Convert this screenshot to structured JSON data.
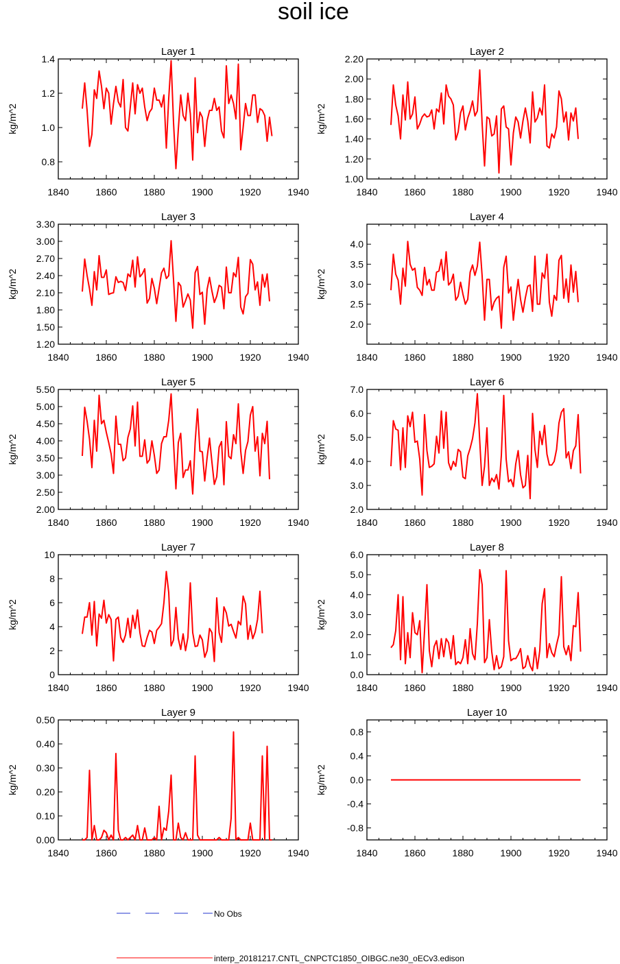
{
  "title": "soil ice",
  "legend": {
    "items": [
      {
        "label": "No Obs",
        "color": "#2233cc",
        "style": "dashed"
      },
      {
        "label": "interp_20181217.CNTL_CNPCTC1850_OIBGC.ne30_oECv3.edison",
        "color": "#ff0000",
        "style": "solid"
      }
    ]
  },
  "line_color": "#ff0000",
  "chart_data": [
    {
      "type": "line",
      "title": "Layer 1",
      "ylabel": "kg/m^2",
      "xlim": [
        1840,
        1940
      ],
      "ylim": [
        0.7,
        1.4
      ],
      "xticks": [
        1840,
        1860,
        1880,
        1900,
        1920,
        1940
      ],
      "xtick_labels": [
        "1840",
        "1860",
        "1880",
        "1900",
        "1920",
        "1940"
      ],
      "yticks": [
        0.8,
        1.0,
        1.2,
        1.4
      ],
      "ytick_labels": [
        "0.8",
        "1.0",
        "1.2",
        "1.4"
      ],
      "x_start": 1850,
      "values": [
        1.11,
        1.26,
        1.1,
        0.89,
        0.96,
        1.22,
        1.17,
        1.33,
        1.24,
        1.11,
        1.23,
        1.2,
        1.02,
        1.14,
        1.24,
        1.15,
        1.12,
        1.28,
        1.0,
        0.98,
        1.12,
        1.26,
        1.08,
        1.25,
        1.2,
        1.23,
        1.12,
        1.04,
        1.09,
        1.11,
        1.23,
        1.16,
        1.16,
        1.12,
        1.19,
        0.88,
        1.17,
        1.39,
        1.03,
        0.76,
        0.99,
        1.19,
        1.07,
        1.04,
        1.2,
        1.08,
        0.81,
        1.29,
        0.97,
        1.09,
        1.06,
        0.89,
        1.04,
        1.1,
        1.1,
        1.17,
        1.1,
        1.12,
        0.98,
        0.94,
        1.36,
        1.14,
        1.19,
        1.14,
        1.05,
        1.37,
        0.87,
        1.0,
        1.14,
        1.07,
        1.07,
        1.19,
        1.19,
        1.03,
        1.11,
        1.1,
        1.07,
        0.92,
        1.06,
        0.95
      ]
    },
    {
      "type": "line",
      "title": "Layer 2",
      "ylabel": "kg/m^2",
      "xlim": [
        1840,
        1940
      ],
      "ylim": [
        1.0,
        2.2
      ],
      "xticks": [
        1840,
        1860,
        1880,
        1900,
        1920,
        1940
      ],
      "xtick_labels": [
        "1840",
        "1860",
        "1880",
        "1900",
        "1920",
        "1940"
      ],
      "yticks": [
        1.0,
        1.2,
        1.4,
        1.6,
        1.8,
        2.0,
        2.2
      ],
      "ytick_labels": [
        "1.00",
        "1.20",
        "1.40",
        "1.60",
        "1.80",
        "2.00",
        "2.20"
      ],
      "x_start": 1850,
      "values": [
        1.54,
        1.94,
        1.74,
        1.63,
        1.4,
        1.84,
        1.59,
        1.97,
        1.6,
        1.65,
        1.82,
        1.5,
        1.55,
        1.62,
        1.65,
        1.62,
        1.63,
        1.69,
        1.5,
        1.7,
        1.67,
        1.86,
        1.55,
        1.94,
        1.83,
        1.8,
        1.74,
        1.39,
        1.47,
        1.66,
        1.73,
        1.49,
        1.61,
        1.68,
        1.78,
        1.63,
        1.68,
        2.09,
        1.55,
        1.13,
        1.62,
        1.6,
        1.43,
        1.45,
        1.63,
        1.06,
        1.7,
        1.73,
        1.52,
        1.5,
        1.14,
        1.46,
        1.62,
        1.57,
        1.41,
        1.58,
        1.71,
        1.58,
        1.36,
        1.87,
        1.57,
        1.61,
        1.71,
        1.64,
        1.94,
        1.33,
        1.31,
        1.45,
        1.41,
        1.52,
        1.88,
        1.8,
        1.57,
        1.67,
        1.39,
        1.66,
        1.58,
        1.71,
        1.4
      ]
    },
    {
      "type": "line",
      "title": "Layer 3",
      "ylabel": "kg/m^2",
      "xlim": [
        1840,
        1940
      ],
      "ylim": [
        1.2,
        3.3
      ],
      "xticks": [
        1840,
        1860,
        1880,
        1900,
        1920,
        1940
      ],
      "xtick_labels": [
        "1840",
        "1860",
        "1880",
        "1900",
        "1920",
        "1940"
      ],
      "yticks": [
        1.2,
        1.5,
        1.8,
        2.1,
        2.4,
        2.7,
        3.0,
        3.3
      ],
      "ytick_labels": [
        "1.20",
        "1.50",
        "1.80",
        "2.10",
        "2.40",
        "2.70",
        "3.00",
        "3.30"
      ],
      "x_start": 1850,
      "values": [
        2.12,
        2.69,
        2.4,
        2.17,
        1.88,
        2.47,
        2.15,
        2.75,
        2.37,
        2.37,
        2.5,
        2.07,
        2.09,
        2.1,
        2.38,
        2.28,
        2.3,
        2.28,
        2.14,
        2.43,
        2.38,
        2.67,
        2.2,
        2.73,
        2.38,
        2.43,
        2.52,
        1.92,
        2.0,
        2.35,
        2.18,
        1.91,
        2.18,
        2.45,
        2.53,
        2.35,
        2.4,
        3.01,
        2.33,
        1.6,
        2.28,
        2.22,
        1.85,
        1.96,
        2.08,
        1.97,
        1.48,
        2.45,
        2.56,
        2.07,
        2.11,
        1.55,
        2.16,
        2.37,
        2.13,
        1.93,
        2.04,
        2.23,
        2.2,
        1.82,
        2.55,
        2.1,
        2.1,
        2.45,
        2.38,
        2.72,
        1.85,
        1.73,
        2.03,
        2.09,
        2.68,
        2.6,
        2.15,
        2.29,
        1.88,
        2.42,
        2.2,
        2.43,
        1.95
      ]
    },
    {
      "type": "line",
      "title": "Layer 4",
      "ylabel": "kg/m^2",
      "xlim": [
        1840,
        1940
      ],
      "ylim": [
        1.5,
        4.5
      ],
      "xticks": [
        1840,
        1860,
        1880,
        1900,
        1920,
        1940
      ],
      "xtick_labels": [
        "1840",
        "1860",
        "1880",
        "1900",
        "1920",
        "1940"
      ],
      "yticks": [
        2.0,
        2.5,
        3.0,
        3.5,
        4.0
      ],
      "ytick_labels": [
        "2.0",
        "2.5",
        "3.0",
        "3.5",
        "4.0"
      ],
      "x_start": 1850,
      "values": [
        2.85,
        3.75,
        3.25,
        3.1,
        2.5,
        3.4,
        2.95,
        4.07,
        3.5,
        3.35,
        3.4,
        2.92,
        2.85,
        2.72,
        3.42,
        2.98,
        3.12,
        2.85,
        2.85,
        3.3,
        3.33,
        3.62,
        3.1,
        3.81,
        2.98,
        3.05,
        3.25,
        2.6,
        2.7,
        3.05,
        2.75,
        2.5,
        2.62,
        3.3,
        3.48,
        3.22,
        3.45,
        4.05,
        3.2,
        2.1,
        3.12,
        3.12,
        2.35,
        2.55,
        2.65,
        2.7,
        1.9,
        3.42,
        3.7,
        2.78,
        2.93,
        2.1,
        2.65,
        3.12,
        2.62,
        2.3,
        2.66,
        2.95,
        2.98,
        2.32,
        3.7,
        2.5,
        2.5,
        3.28,
        3.15,
        3.75,
        2.55,
        2.2,
        2.72,
        2.6,
        3.6,
        3.72,
        2.65,
        3.13,
        2.55,
        3.48,
        2.8,
        3.32,
        2.55
      ]
    },
    {
      "type": "line",
      "title": "Layer 5",
      "ylabel": "kg/m^2",
      "xlim": [
        1840,
        1940
      ],
      "ylim": [
        2.0,
        5.5
      ],
      "xticks": [
        1840,
        1860,
        1880,
        1900,
        1920,
        1940
      ],
      "xtick_labels": [
        "1840",
        "1860",
        "1880",
        "1900",
        "1920",
        "1940"
      ],
      "yticks": [
        2.0,
        2.5,
        3.0,
        3.5,
        4.0,
        4.5,
        5.0,
        5.5
      ],
      "ytick_labels": [
        "2.00",
        "2.50",
        "3.00",
        "3.50",
        "4.00",
        "4.50",
        "5.00",
        "5.50"
      ],
      "x_start": 1850,
      "values": [
        3.56,
        4.98,
        4.57,
        4.05,
        3.22,
        4.6,
        3.7,
        5.33,
        4.5,
        4.6,
        4.25,
        3.95,
        3.62,
        3.05,
        4.72,
        3.9,
        3.9,
        3.42,
        3.5,
        4.1,
        4.35,
        5.02,
        3.85,
        5.13,
        3.55,
        3.55,
        4.03,
        3.35,
        3.45,
        4.0,
        3.58,
        3.05,
        3.15,
        3.92,
        4.12,
        4.12,
        4.6,
        5.37,
        3.95,
        2.6,
        3.95,
        4.22,
        2.93,
        3.15,
        3.15,
        3.42,
        2.45,
        3.95,
        4.93,
        3.7,
        3.68,
        2.83,
        3.52,
        4.08,
        3.38,
        2.73,
        2.95,
        3.82,
        3.98,
        2.72,
        4.56,
        3.55,
        3.48,
        4.18,
        3.92,
        5.08,
        3.7,
        3.05,
        3.72,
        3.98,
        4.75,
        5.0,
        3.7,
        4.12,
        2.98,
        4.22,
        3.92,
        4.57,
        2.88
      ]
    },
    {
      "type": "line",
      "title": "Layer 6",
      "ylabel": "kg/m^2",
      "xlim": [
        1840,
        1940
      ],
      "ylim": [
        2.0,
        7.0
      ],
      "xticks": [
        1840,
        1860,
        1880,
        1900,
        1920,
        1940
      ],
      "xtick_labels": [
        "1840",
        "1860",
        "1880",
        "1900",
        "1920",
        "1940"
      ],
      "yticks": [
        2.0,
        3.0,
        4.0,
        5.0,
        6.0,
        7.0
      ],
      "ytick_labels": [
        "2.0",
        "3.0",
        "4.0",
        "5.0",
        "6.0",
        "7.0"
      ],
      "x_start": 1850,
      "values": [
        3.8,
        5.7,
        5.35,
        5.3,
        3.65,
        5.4,
        3.75,
        5.9,
        5.45,
        6.05,
        4.8,
        4.85,
        4.1,
        2.6,
        5.95,
        4.45,
        3.75,
        3.8,
        3.9,
        5.05,
        4.35,
        6.1,
        4.55,
        6.05,
        3.95,
        3.65,
        4.0,
        3.8,
        4.5,
        4.4,
        3.35,
        3.28,
        4.23,
        4.55,
        4.95,
        5.6,
        6.82,
        4.85,
        3.0,
        3.8,
        5.4,
        3.0,
        3.3,
        3.15,
        3.45,
        2.85,
        4.25,
        6.75,
        4.1,
        3.15,
        3.25,
        2.95,
        3.9,
        4.45,
        3.45,
        2.9,
        3.0,
        4.25,
        2.45,
        6.0,
        4.5,
        3.75,
        5.25,
        4.7,
        5.5,
        4.3,
        3.85,
        3.85,
        4.0,
        4.5,
        5.6,
        6.05,
        6.2,
        4.15,
        4.4,
        3.7,
        4.45,
        4.65,
        5.95,
        3.5
      ]
    },
    {
      "type": "line",
      "title": "Layer 7",
      "ylabel": "kg/m^2",
      "xlim": [
        1840,
        1940
      ],
      "ylim": [
        0,
        10
      ],
      "xticks": [
        1840,
        1860,
        1880,
        1900,
        1920,
        1940
      ],
      "xtick_labels": [
        "1840",
        "1860",
        "1880",
        "1900",
        "1920",
        "1940"
      ],
      "yticks": [
        0,
        2,
        4,
        6,
        8,
        10
      ],
      "ytick_labels": [
        "0",
        "2",
        "4",
        "6",
        "8",
        "10"
      ],
      "x_start": 1850,
      "values": [
        3.4,
        4.8,
        4.8,
        6.0,
        3.3,
        6.1,
        2.4,
        5.05,
        4.7,
        6.2,
        4.3,
        5.0,
        4.6,
        1.15,
        4.6,
        4.8,
        3.1,
        2.7,
        3.3,
        4.7,
        3.1,
        4.95,
        3.85,
        5.4,
        3.5,
        2.4,
        2.35,
        3.1,
        3.7,
        3.55,
        2.6,
        3.7,
        3.95,
        4.25,
        6.0,
        8.6,
        6.85,
        2.4,
        2.9,
        5.6,
        3.0,
        2.1,
        3.4,
        2.0,
        3.1,
        7.65,
        3.5,
        2.35,
        2.4,
        3.3,
        2.9,
        1.45,
        2.0,
        3.85,
        3.5,
        1.1,
        6.4,
        3.5,
        2.7,
        5.65,
        5.15,
        4.05,
        4.2,
        3.6,
        3.05,
        4.45,
        4.15,
        6.55,
        5.9,
        2.95,
        4.1,
        3.0,
        3.55,
        4.6,
        6.95,
        3.45
      ]
    },
    {
      "type": "line",
      "title": "Layer 8",
      "ylabel": "kg/m^2",
      "xlim": [
        1840,
        1940
      ],
      "ylim": [
        0,
        6
      ],
      "xticks": [
        1840,
        1860,
        1880,
        1900,
        1920,
        1940
      ],
      "xtick_labels": [
        "1840",
        "1860",
        "1880",
        "1900",
        "1920",
        "1940"
      ],
      "yticks": [
        0,
        1,
        2,
        3,
        4,
        5,
        6
      ],
      "ytick_labels": [
        "0.0",
        "1.0",
        "2.0",
        "3.0",
        "4.0",
        "5.0",
        "6.0"
      ],
      "x_start": 1850,
      "values": [
        1.35,
        1.5,
        2.2,
        4.0,
        0.75,
        3.9,
        0.55,
        2.1,
        0.85,
        3.1,
        2.1,
        2.0,
        2.7,
        0.1,
        2.2,
        4.5,
        1.2,
        0.4,
        1.4,
        1.7,
        0.8,
        1.8,
        0.9,
        1.8,
        1.6,
        0.8,
        1.95,
        0.5,
        0.65,
        0.55,
        0.85,
        1.75,
        0.55,
        2.3,
        1.05,
        0.75,
        2.55,
        5.25,
        4.5,
        0.6,
        0.85,
        2.75,
        1.15,
        0.25,
        0.95,
        0.3,
        0.4,
        0.9,
        5.2,
        1.7,
        0.7,
        0.8,
        0.8,
        1.0,
        1.3,
        0.3,
        0.4,
        0.95,
        0.45,
        0.2,
        1.35,
        0.3,
        1.2,
        3.55,
        4.3,
        0.85,
        1.55,
        1.1,
        0.9,
        1.5,
        2.0,
        4.9,
        1.4,
        1.0,
        1.45,
        0.7,
        2.45,
        2.4,
        4.1,
        1.15
      ]
    },
    {
      "type": "line",
      "title": "Layer 9",
      "ylabel": "kg/m^2",
      "xlim": [
        1840,
        1940
      ],
      "ylim": [
        0,
        0.5
      ],
      "xticks": [
        1840,
        1860,
        1880,
        1900,
        1920,
        1940
      ],
      "xtick_labels": [
        "1840",
        "1860",
        "1880",
        "1900",
        "1920",
        "1940"
      ],
      "yticks": [
        0,
        0.1,
        0.2,
        0.3,
        0.4,
        0.5
      ],
      "ytick_labels": [
        "0.00",
        "0.10",
        "0.20",
        "0.30",
        "0.40",
        "0.50"
      ],
      "x_start": 1850,
      "values": [
        0.0,
        0.0,
        0.01,
        0.29,
        0.0,
        0.06,
        0.0,
        0.0,
        0.01,
        0.04,
        0.03,
        0.0,
        0.02,
        0.0,
        0.36,
        0.04,
        0.0,
        0.0,
        0.01,
        0.0,
        0.01,
        0.02,
        0.0,
        0.06,
        0.0,
        0.0,
        0.05,
        0.0,
        0.0,
        0.0,
        0.01,
        0.0,
        0.14,
        0.0,
        0.05,
        0.04,
        0.12,
        0.27,
        0.0,
        0.0,
        0.07,
        0.01,
        0.0,
        0.03,
        0.0,
        0.0,
        0.0,
        0.35,
        0.02,
        0.0,
        0.0,
        0.0,
        0.0,
        0.0,
        0.0,
        0.0,
        0.0,
        0.01,
        0.0,
        0.0,
        0.0,
        0.0,
        0.09,
        0.45,
        0.0,
        0.01,
        0.0,
        0.0,
        0.0,
        0.0,
        0.07,
        0.0,
        0.0,
        0.0,
        0.0,
        0.35,
        0.0,
        0.39,
        0.0,
        0.0
      ]
    },
    {
      "type": "line",
      "title": "Layer 10",
      "ylabel": "kg/m^2",
      "xlim": [
        1840,
        1940
      ],
      "ylim": [
        -1.0,
        1.0
      ],
      "xticks": [
        1840,
        1860,
        1880,
        1900,
        1920,
        1940
      ],
      "xtick_labels": [
        "1840",
        "1860",
        "1880",
        "1900",
        "1920",
        "1940"
      ],
      "yticks": [
        -0.8,
        -0.4,
        0.0,
        0.4,
        0.8
      ],
      "ytick_labels": [
        "-0.8",
        "-0.4",
        "0.0",
        "0.4",
        "0.8"
      ],
      "x_start": 1850,
      "values": [
        0,
        0,
        0,
        0,
        0,
        0,
        0,
        0,
        0,
        0,
        0,
        0,
        0,
        0,
        0,
        0,
        0,
        0,
        0,
        0,
        0,
        0,
        0,
        0,
        0,
        0,
        0,
        0,
        0,
        0,
        0,
        0,
        0,
        0,
        0,
        0,
        0,
        0,
        0,
        0,
        0,
        0,
        0,
        0,
        0,
        0,
        0,
        0,
        0,
        0,
        0,
        0,
        0,
        0,
        0,
        0,
        0,
        0,
        0,
        0,
        0,
        0,
        0,
        0,
        0,
        0,
        0,
        0,
        0,
        0,
        0,
        0,
        0,
        0,
        0,
        0,
        0,
        0,
        0,
        0
      ]
    }
  ]
}
